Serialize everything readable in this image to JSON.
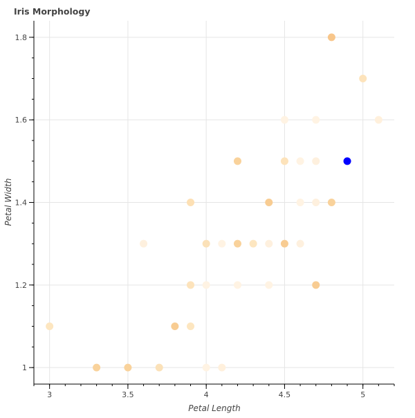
{
  "chart_data": {
    "type": "scatter",
    "title": "Iris Morphology",
    "xlabel": "Petal Length",
    "ylabel": "Petal Width",
    "xlim": [
      2.9,
      5.2
    ],
    "ylim": [
      0.96,
      1.84
    ],
    "xticks": [
      3,
      3.5,
      4,
      4.5,
      5
    ],
    "xtick_labels": [
      "3",
      "3.5",
      "4",
      "4.5",
      "5"
    ],
    "yticks": [
      1,
      1.2,
      1.4,
      1.6,
      1.8
    ],
    "ytick_labels": [
      "1",
      "1.2",
      "1.4",
      "1.6",
      "1.8"
    ],
    "grid": true,
    "series": [
      {
        "name": "points",
        "points": [
          {
            "x": 3.0,
            "y": 1.1,
            "color": "#fde6c0"
          },
          {
            "x": 3.3,
            "y": 1.0,
            "color": "#f9d29b"
          },
          {
            "x": 3.5,
            "y": 1.0,
            "color": "#f9d29b"
          },
          {
            "x": 3.7,
            "y": 1.0,
            "color": "#fbe1b8"
          },
          {
            "x": 3.8,
            "y": 1.1,
            "color": "#f8cc92"
          },
          {
            "x": 3.9,
            "y": 1.1,
            "color": "#fde6c0"
          },
          {
            "x": 4.0,
            "y": 1.0,
            "color": "#fff3e3"
          },
          {
            "x": 4.1,
            "y": 1.0,
            "color": "#fff0dc"
          },
          {
            "x": 3.9,
            "y": 1.2,
            "color": "#fde3bb"
          },
          {
            "x": 4.0,
            "y": 1.2,
            "color": "#fff3e3"
          },
          {
            "x": 4.2,
            "y": 1.2,
            "color": "#fff3e3"
          },
          {
            "x": 4.4,
            "y": 1.2,
            "color": "#fff3e3"
          },
          {
            "x": 4.7,
            "y": 1.2,
            "color": "#f8cc92"
          },
          {
            "x": 3.6,
            "y": 1.3,
            "color": "#fef0de"
          },
          {
            "x": 4.0,
            "y": 1.3,
            "color": "#fbe1b8"
          },
          {
            "x": 4.1,
            "y": 1.3,
            "color": "#fff3e3"
          },
          {
            "x": 4.2,
            "y": 1.3,
            "color": "#f9d29b"
          },
          {
            "x": 4.3,
            "y": 1.3,
            "color": "#fde6c0"
          },
          {
            "x": 4.4,
            "y": 1.3,
            "color": "#fef0de"
          },
          {
            "x": 4.5,
            "y": 1.3,
            "color": "#f8cc92"
          },
          {
            "x": 4.6,
            "y": 1.3,
            "color": "#fef0de"
          },
          {
            "x": 3.9,
            "y": 1.4,
            "color": "#fde0b4"
          },
          {
            "x": 4.4,
            "y": 1.4,
            "color": "#f8cc92"
          },
          {
            "x": 4.6,
            "y": 1.4,
            "color": "#fff3e3"
          },
          {
            "x": 4.7,
            "y": 1.4,
            "color": "#fef0de"
          },
          {
            "x": 4.8,
            "y": 1.4,
            "color": "#f9d29b"
          },
          {
            "x": 4.2,
            "y": 1.5,
            "color": "#f9d29b"
          },
          {
            "x": 4.5,
            "y": 1.5,
            "color": "#fde3bb"
          },
          {
            "x": 4.6,
            "y": 1.5,
            "color": "#fff3e3"
          },
          {
            "x": 4.7,
            "y": 1.5,
            "color": "#fef0de"
          },
          {
            "x": 4.9,
            "y": 1.5,
            "color": "#0000ff"
          },
          {
            "x": 4.5,
            "y": 1.6,
            "color": "#fff3e3"
          },
          {
            "x": 4.7,
            "y": 1.6,
            "color": "#fff3e3"
          },
          {
            "x": 5.1,
            "y": 1.6,
            "color": "#fff0dc"
          },
          {
            "x": 5.0,
            "y": 1.7,
            "color": "#fde3bb"
          },
          {
            "x": 4.8,
            "y": 1.8,
            "color": "#f8c68a"
          }
        ]
      }
    ]
  }
}
